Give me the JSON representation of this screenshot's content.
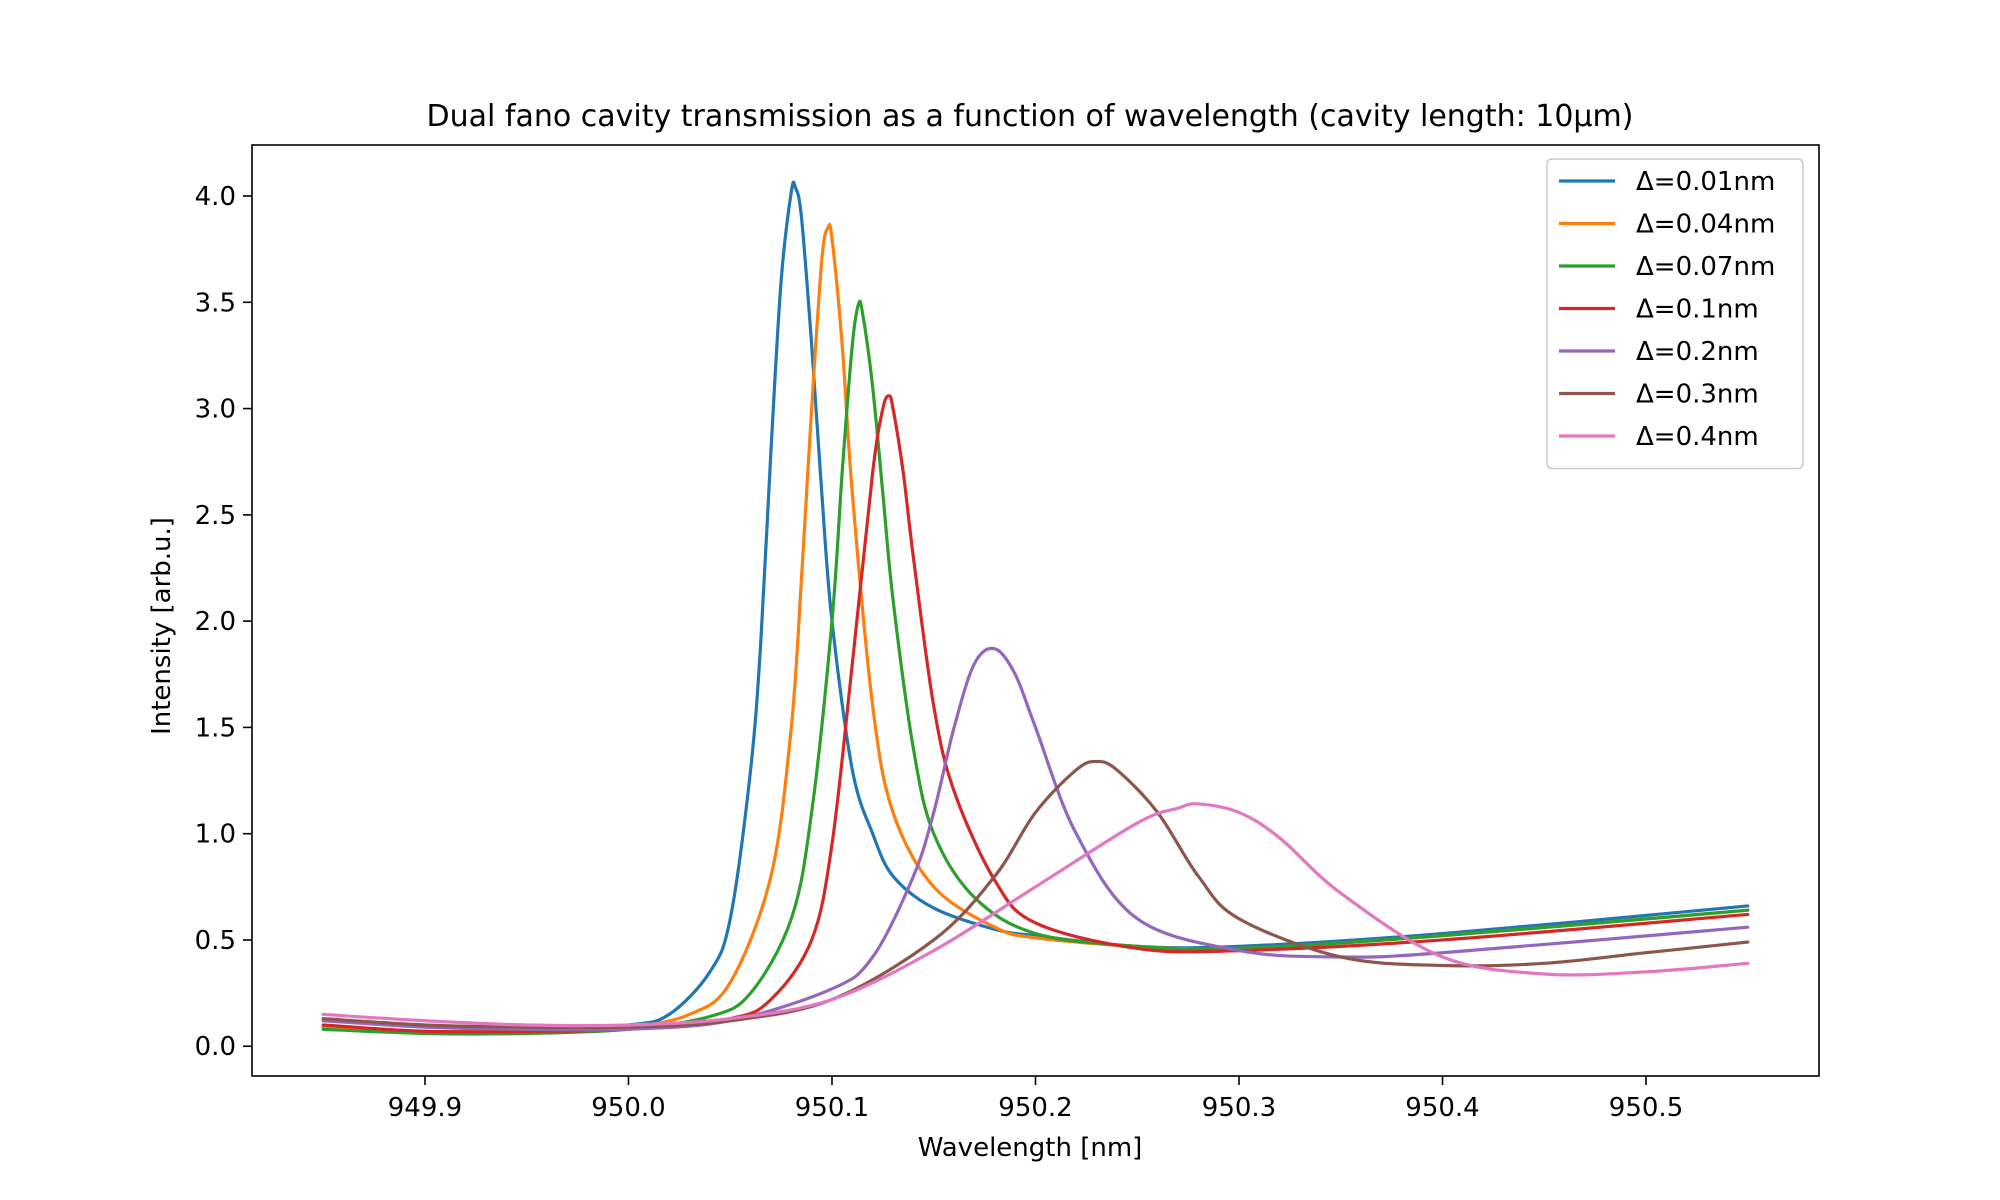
{
  "chart_data": {
    "type": "line",
    "title": "Dual fano cavity transmission as a function of wavelength (cavity length: 10µm)",
    "xlabel": "Wavelength [nm]",
    "ylabel": "Intensity [arb.u.]",
    "xlim": [
      949.815,
      950.585
    ],
    "ylim": [
      -0.14,
      4.24
    ],
    "xticks": [
      949.9,
      950.0,
      950.1,
      950.2,
      950.3,
      950.4,
      950.5
    ],
    "xtick_labels": [
      "949.9",
      "950.0",
      "950.1",
      "950.2",
      "950.3",
      "950.4",
      "950.5"
    ],
    "yticks": [
      0.0,
      0.5,
      1.0,
      1.5,
      2.0,
      2.5,
      3.0,
      3.5,
      4.0
    ],
    "ytick_labels": [
      "0.0",
      "0.5",
      "1.0",
      "1.5",
      "2.0",
      "2.5",
      "3.0",
      "3.5",
      "4.0"
    ],
    "legend_position": "top-right",
    "series": [
      {
        "name": "Δ=0.01nm",
        "color": "#1f77b4",
        "x": [
          949.85,
          949.9,
          949.95,
          950.0,
          950.02,
          950.04,
          950.05,
          950.06,
          950.065,
          950.07,
          950.075,
          950.08,
          950.082,
          950.085,
          950.09,
          950.095,
          950.1,
          950.11,
          950.12,
          950.13,
          950.15,
          950.18,
          950.2,
          950.25,
          950.3,
          950.4,
          950.55
        ],
        "y": [
          0.08,
          0.07,
          0.07,
          0.1,
          0.15,
          0.35,
          0.6,
          1.3,
          1.9,
          2.8,
          3.6,
          4.02,
          4.04,
          3.9,
          3.3,
          2.6,
          2.0,
          1.3,
          1.0,
          0.8,
          0.65,
          0.55,
          0.52,
          0.47,
          0.47,
          0.53,
          0.66
        ]
      },
      {
        "name": "Δ=0.04nm",
        "color": "#ff7f0e",
        "x": [
          949.85,
          949.9,
          949.95,
          950.0,
          950.03,
          950.05,
          950.07,
          950.08,
          950.085,
          950.09,
          950.095,
          950.098,
          950.1,
          950.105,
          950.11,
          950.12,
          950.13,
          950.15,
          950.18,
          950.2,
          950.25,
          950.3,
          950.4,
          950.55
        ],
        "y": [
          0.09,
          0.07,
          0.07,
          0.09,
          0.15,
          0.3,
          0.8,
          1.5,
          2.2,
          3.0,
          3.7,
          3.85,
          3.8,
          3.3,
          2.6,
          1.6,
          1.1,
          0.75,
          0.56,
          0.51,
          0.47,
          0.46,
          0.52,
          0.64
        ]
      },
      {
        "name": "Δ=0.07nm",
        "color": "#2ca02c",
        "x": [
          949.85,
          949.9,
          949.95,
          950.0,
          950.04,
          950.06,
          950.08,
          950.09,
          950.1,
          950.105,
          950.11,
          950.113,
          950.115,
          950.12,
          950.125,
          950.13,
          950.14,
          950.15,
          950.17,
          950.2,
          950.25,
          950.3,
          950.4,
          950.55
        ],
        "y": [
          0.08,
          0.06,
          0.06,
          0.08,
          0.14,
          0.25,
          0.6,
          1.1,
          2.0,
          2.7,
          3.3,
          3.49,
          3.45,
          3.1,
          2.6,
          2.1,
          1.4,
          1.0,
          0.7,
          0.53,
          0.47,
          0.46,
          0.52,
          0.64
        ]
      },
      {
        "name": "Δ=0.1nm",
        "color": "#d62728",
        "x": [
          949.85,
          949.9,
          949.95,
          950.0,
          950.05,
          950.07,
          950.09,
          950.1,
          950.11,
          950.12,
          950.125,
          950.128,
          950.13,
          950.135,
          950.14,
          950.15,
          950.16,
          950.18,
          950.2,
          950.25,
          950.3,
          950.4,
          950.55
        ],
        "y": [
          0.1,
          0.07,
          0.07,
          0.08,
          0.13,
          0.22,
          0.5,
          0.95,
          1.8,
          2.7,
          3.0,
          3.06,
          3.0,
          2.7,
          2.3,
          1.6,
          1.2,
          0.78,
          0.58,
          0.46,
          0.45,
          0.5,
          0.62
        ]
      },
      {
        "name": "Δ=0.2nm",
        "color": "#9467bd",
        "x": [
          949.85,
          949.9,
          949.95,
          950.0,
          950.05,
          950.1,
          950.12,
          950.14,
          950.15,
          950.16,
          950.17,
          950.18,
          950.19,
          950.2,
          950.22,
          950.25,
          950.3,
          950.35,
          950.4,
          950.55
        ],
        "y": [
          0.12,
          0.09,
          0.08,
          0.08,
          0.12,
          0.27,
          0.42,
          0.8,
          1.1,
          1.5,
          1.8,
          1.87,
          1.75,
          1.5,
          1.0,
          0.6,
          0.45,
          0.42,
          0.44,
          0.56
        ]
      },
      {
        "name": "Δ=0.3nm",
        "color": "#8c564b",
        "x": [
          949.85,
          949.9,
          949.95,
          950.0,
          950.05,
          950.1,
          950.15,
          950.18,
          950.2,
          950.22,
          950.23,
          950.24,
          950.26,
          950.28,
          950.3,
          950.35,
          950.4,
          950.45,
          950.5,
          950.55
        ],
        "y": [
          0.13,
          0.1,
          0.09,
          0.09,
          0.12,
          0.22,
          0.5,
          0.8,
          1.1,
          1.3,
          1.34,
          1.3,
          1.1,
          0.8,
          0.6,
          0.42,
          0.38,
          0.39,
          0.44,
          0.49
        ]
      },
      {
        "name": "Δ=0.4nm",
        "color": "#e377c2",
        "x": [
          949.85,
          949.9,
          949.95,
          950.0,
          950.05,
          950.1,
          950.15,
          950.2,
          950.25,
          950.27,
          950.28,
          950.3,
          950.32,
          950.35,
          950.4,
          950.45,
          950.5,
          950.55
        ],
        "y": [
          0.15,
          0.12,
          0.1,
          0.1,
          0.13,
          0.22,
          0.45,
          0.75,
          1.05,
          1.12,
          1.14,
          1.1,
          0.98,
          0.72,
          0.42,
          0.34,
          0.35,
          0.39
        ]
      }
    ]
  }
}
